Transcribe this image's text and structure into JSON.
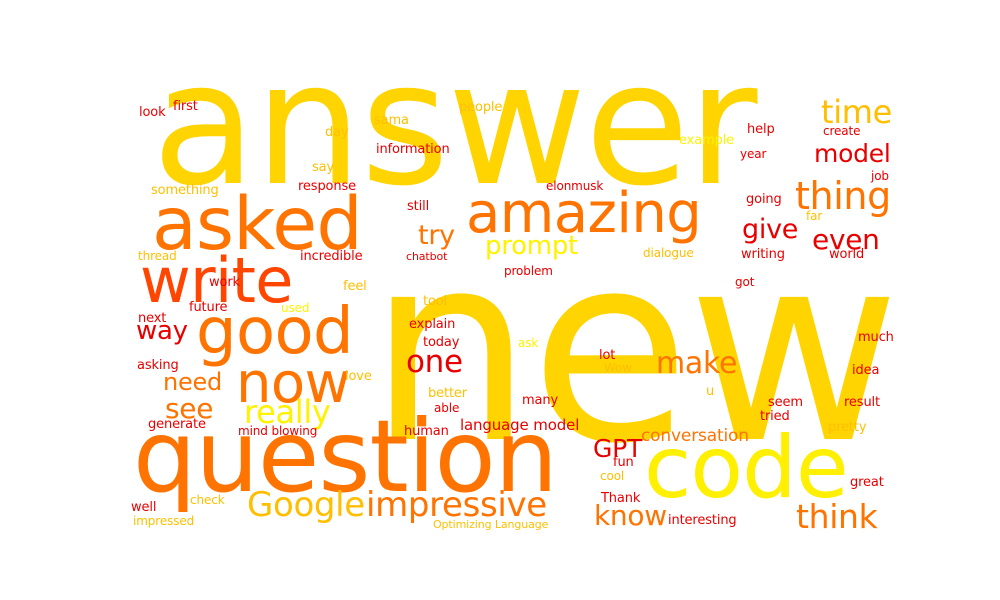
{
  "word_cloud": {
    "palette": {
      "gold": "#ffd400",
      "yellow": "#ffef00",
      "light_yellow": "#fff200",
      "amber": "#ffbf00",
      "orange": "#ff8c00",
      "dark_orange": "#ff7300",
      "red_orange": "#ff4500",
      "red": "#e80000"
    },
    "words": [
      {
        "text": "answer",
        "color": "gold"
      },
      {
        "text": "new",
        "color": "gold"
      },
      {
        "text": "question",
        "color": "dark_orange"
      },
      {
        "text": "code",
        "color": "yellow"
      },
      {
        "text": "asked",
        "color": "dark_orange"
      },
      {
        "text": "amazing",
        "color": "dark_orange"
      },
      {
        "text": "write",
        "color": "red_orange"
      },
      {
        "text": "good",
        "color": "dark_orange"
      },
      {
        "text": "now",
        "color": "dark_orange"
      },
      {
        "text": "impressive",
        "color": "dark_orange"
      },
      {
        "text": "Google",
        "color": "amber"
      },
      {
        "text": "thing",
        "color": "dark_orange"
      },
      {
        "text": "think",
        "color": "dark_orange"
      },
      {
        "text": "time",
        "color": "amber"
      },
      {
        "text": "really",
        "color": "light_yellow"
      },
      {
        "text": "model",
        "color": "red"
      },
      {
        "text": "prompt",
        "color": "light_yellow"
      },
      {
        "text": "make",
        "color": "dark_orange"
      },
      {
        "text": "even",
        "color": "red"
      },
      {
        "text": "one",
        "color": "red"
      },
      {
        "text": "give",
        "color": "red"
      },
      {
        "text": "know",
        "color": "dark_orange"
      },
      {
        "text": "try",
        "color": "dark_orange"
      },
      {
        "text": "way",
        "color": "red"
      },
      {
        "text": "see",
        "color": "dark_orange"
      },
      {
        "text": "need",
        "color": "dark_orange"
      },
      {
        "text": "GPT",
        "color": "red"
      },
      {
        "text": "conversation",
        "color": "dark_orange"
      },
      {
        "text": "language model",
        "color": "red"
      },
      {
        "text": "look",
        "color": "red"
      },
      {
        "text": "first",
        "color": "red"
      },
      {
        "text": "people",
        "color": "amber"
      },
      {
        "text": "sama",
        "color": "amber"
      },
      {
        "text": "day",
        "color": "amber"
      },
      {
        "text": "information",
        "color": "red"
      },
      {
        "text": "say",
        "color": "amber"
      },
      {
        "text": "something",
        "color": "amber"
      },
      {
        "text": "response",
        "color": "red"
      },
      {
        "text": "elonmusk",
        "color": "red"
      },
      {
        "text": "still",
        "color": "red"
      },
      {
        "text": "help",
        "color": "red"
      },
      {
        "text": "create",
        "color": "red"
      },
      {
        "text": "example",
        "color": "light_yellow"
      },
      {
        "text": "year",
        "color": "red"
      },
      {
        "text": "job",
        "color": "red"
      },
      {
        "text": "going",
        "color": "red"
      },
      {
        "text": "far",
        "color": "amber"
      },
      {
        "text": "thread",
        "color": "amber"
      },
      {
        "text": "incredible",
        "color": "red"
      },
      {
        "text": "chatbot",
        "color": "red"
      },
      {
        "text": "dialogue",
        "color": "amber"
      },
      {
        "text": "writing",
        "color": "red"
      },
      {
        "text": "world",
        "color": "red"
      },
      {
        "text": "work",
        "color": "red"
      },
      {
        "text": "feel",
        "color": "amber"
      },
      {
        "text": "problem",
        "color": "red"
      },
      {
        "text": "got",
        "color": "red"
      },
      {
        "text": "future",
        "color": "red"
      },
      {
        "text": "tool",
        "color": "amber"
      },
      {
        "text": "next",
        "color": "red"
      },
      {
        "text": "used",
        "color": "light_yellow"
      },
      {
        "text": "explain",
        "color": "red"
      },
      {
        "text": "much",
        "color": "red"
      },
      {
        "text": "today",
        "color": "red"
      },
      {
        "text": "ask",
        "color": "light_yellow"
      },
      {
        "text": "lot",
        "color": "red"
      },
      {
        "text": "asking",
        "color": "red"
      },
      {
        "text": "love",
        "color": "amber"
      },
      {
        "text": "Wow",
        "color": "amber"
      },
      {
        "text": "idea",
        "color": "red"
      },
      {
        "text": "u",
        "color": "amber"
      },
      {
        "text": "better",
        "color": "amber"
      },
      {
        "text": "many",
        "color": "red"
      },
      {
        "text": "seem",
        "color": "red"
      },
      {
        "text": "result",
        "color": "red"
      },
      {
        "text": "able",
        "color": "red"
      },
      {
        "text": "tried",
        "color": "red"
      },
      {
        "text": "generate",
        "color": "red"
      },
      {
        "text": "mind blowing",
        "color": "red"
      },
      {
        "text": "human",
        "color": "red"
      },
      {
        "text": "pretty",
        "color": "amber"
      },
      {
        "text": "fun",
        "color": "red"
      },
      {
        "text": "cool",
        "color": "amber"
      },
      {
        "text": "Thank",
        "color": "red"
      },
      {
        "text": "great",
        "color": "red"
      },
      {
        "text": "check",
        "color": "amber"
      },
      {
        "text": "well",
        "color": "red"
      },
      {
        "text": "impressed",
        "color": "amber"
      },
      {
        "text": "Optimizing Language",
        "color": "amber"
      },
      {
        "text": "interesting",
        "color": "red"
      }
    ]
  }
}
